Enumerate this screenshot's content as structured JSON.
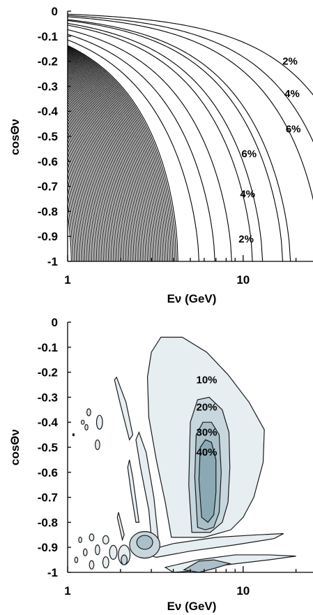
{
  "chart_data": [
    {
      "type": "contour",
      "xlabel": "Eν (GeV)",
      "ylabel": "cosΘν",
      "xscale": "log",
      "xlim": [
        1,
        25
      ],
      "ylim": [
        -1,
        0
      ],
      "x_ticks": [
        "1",
        "10"
      ],
      "y_ticks": [
        "0",
        "-0.1",
        "-0.2",
        "-0.3",
        "-0.4",
        "-0.5",
        "-0.6",
        "-0.7",
        "-0.8",
        "-0.9",
        "-1"
      ],
      "contour_labels": [
        {
          "text": "2%",
          "x": 18.5,
          "y": -0.2
        },
        {
          "text": "4%",
          "x": 19.0,
          "y": -0.33
        },
        {
          "text": "6%",
          "x": 19.3,
          "y": -0.47
        },
        {
          "text": "6%",
          "x": 10.8,
          "y": -0.57
        },
        {
          "text": "4%",
          "x": 10.6,
          "y": -0.73
        },
        {
          "text": "2%",
          "x": 10.4,
          "y": -0.91
        }
      ]
    },
    {
      "type": "contour",
      "xlabel": "Eν (GeV)",
      "ylabel": "cosΘν",
      "xscale": "log",
      "xlim": [
        1,
        25
      ],
      "ylim": [
        -1,
        0
      ],
      "x_ticks": [
        "1",
        "10"
      ],
      "y_ticks": [
        "0",
        "-0.1",
        "-0.2",
        "-0.3",
        "-0.4",
        "-0.5",
        "-0.6",
        "-0.7",
        "-0.8",
        "-0.9",
        "-1"
      ],
      "levels": [
        10,
        20,
        30,
        40
      ],
      "contour_labels": [
        {
          "text": "10%",
          "x": 6.2,
          "y": -0.23
        },
        {
          "text": "20%",
          "x": 6.2,
          "y": -0.34
        },
        {
          "text": "30%",
          "x": 6.2,
          "y": -0.44
        },
        {
          "text": "40%",
          "x": 6.2,
          "y": -0.52
        }
      ]
    }
  ]
}
